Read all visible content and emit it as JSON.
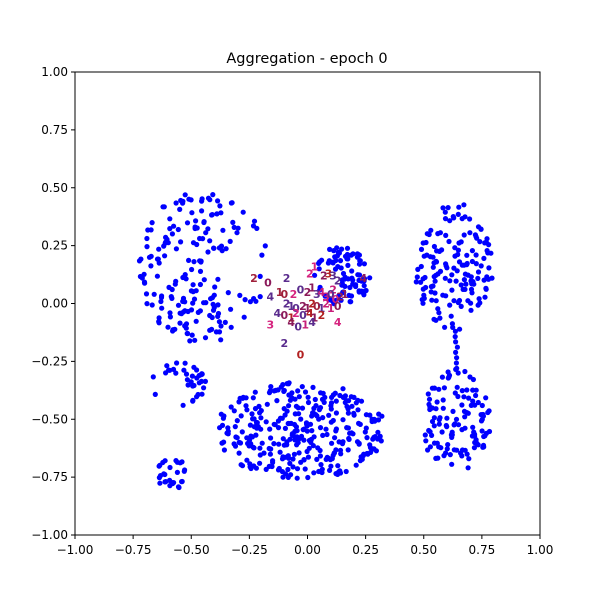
{
  "chart_data": {
    "type": "scatter",
    "title": "Aggregation - epoch 0",
    "xlabel": "",
    "ylabel": "",
    "xlim": [
      -1.0,
      1.0
    ],
    "ylim": [
      -1.0,
      1.0
    ],
    "grid": false,
    "legend": "none",
    "x_ticks": [
      "−1.00",
      "−0.75",
      "−0.50",
      "−0.25",
      "0.00",
      "0.25",
      "0.50",
      "0.75",
      "1.00"
    ],
    "y_ticks": [
      "1.00",
      "0.75",
      "0.50",
      "0.25",
      "0.00",
      "−0.25",
      "−0.50",
      "−0.75",
      "−1.00"
    ],
    "colors": {
      "points": "#0000ff",
      "digit_palette": [
        "#c81e7a",
        "#8b1a5a",
        "#a0203a",
        "#b22222",
        "#5b2d8e",
        "#d6247f"
      ]
    },
    "point_clusters": [
      {
        "shape": "crescent",
        "cx": -0.45,
        "cy": 0.16,
        "rx": 0.28,
        "ry": 0.33,
        "gap_angle": 0,
        "gap_width": 0.55,
        "n": 190
      },
      {
        "shape": "crescent",
        "cx": 0.15,
        "cy": 0.12,
        "rx": 0.12,
        "ry": 0.13,
        "gap_angle": 3.6,
        "gap_width": 0.9,
        "n": 90
      },
      {
        "shape": "ellipse",
        "cx": 0.63,
        "cy": 0.16,
        "rx": 0.17,
        "ry": 0.28,
        "n": 150
      },
      {
        "shape": "bridge",
        "x0": 0.64,
        "y0": -0.12,
        "x1": 0.64,
        "y1": -0.28,
        "n": 8
      },
      {
        "shape": "ellipse",
        "cx": 0.64,
        "cy": -0.51,
        "rx": 0.15,
        "ry": 0.23,
        "n": 120
      },
      {
        "shape": "ellipse",
        "cx": -0.03,
        "cy": -0.55,
        "rx": 0.37,
        "ry": 0.21,
        "n": 330
      },
      {
        "shape": "crescent",
        "cx": -0.55,
        "cy": -0.35,
        "rx": 0.12,
        "ry": 0.1,
        "gap_angle": 3.8,
        "gap_width": 1.4,
        "n": 35
      },
      {
        "shape": "ellipse",
        "cx": -0.585,
        "cy": -0.73,
        "rx": 0.07,
        "ry": 0.075,
        "n": 28
      }
    ],
    "digit_labels": [
      {
        "t": "2",
        "x": -0.23,
        "y": 0.11
      },
      {
        "t": "0",
        "x": -0.17,
        "y": 0.09
      },
      {
        "t": "2",
        "x": -0.09,
        "y": 0.11
      },
      {
        "t": "2",
        "x": 0.01,
        "y": 0.13
      },
      {
        "t": "1",
        "x": 0.03,
        "y": 0.16
      },
      {
        "t": "2",
        "x": 0.07,
        "y": 0.12
      },
      {
        "t": "3",
        "x": 0.09,
        "y": 0.13
      },
      {
        "t": "3",
        "x": 0.11,
        "y": 0.12
      },
      {
        "t": "2",
        "x": 0.13,
        "y": 0.1
      },
      {
        "t": "4",
        "x": 0.24,
        "y": 0.11
      },
      {
        "t": "2",
        "x": 0.11,
        "y": 0.06
      },
      {
        "t": "0",
        "x": 0.12,
        "y": 0.02
      },
      {
        "t": "4",
        "x": -0.16,
        "y": 0.03
      },
      {
        "t": "1",
        "x": -0.12,
        "y": 0.05
      },
      {
        "t": "0",
        "x": -0.1,
        "y": 0.04
      },
      {
        "t": "2",
        "x": -0.06,
        "y": 0.04
      },
      {
        "t": "0",
        "x": -0.03,
        "y": 0.06
      },
      {
        "t": "2",
        "x": 0.0,
        "y": 0.05
      },
      {
        "t": "1",
        "x": 0.02,
        "y": 0.07
      },
      {
        "t": "3",
        "x": 0.04,
        "y": 0.04
      },
      {
        "t": "4",
        "x": 0.06,
        "y": 0.05
      },
      {
        "t": "3",
        "x": 0.08,
        "y": 0.03
      },
      {
        "t": "0",
        "x": 0.1,
        "y": 0.04
      },
      {
        "t": "2",
        "x": 0.14,
        "y": 0.03
      },
      {
        "t": "1",
        "x": 0.16,
        "y": 0.04
      },
      {
        "t": "0",
        "x": 0.13,
        "y": -0.01
      },
      {
        "t": "2",
        "x": -0.09,
        "y": -0.0
      },
      {
        "t": "1",
        "x": -0.07,
        "y": -0.01
      },
      {
        "t": "0",
        "x": -0.05,
        "y": -0.02
      },
      {
        "t": "2",
        "x": -0.02,
        "y": -0.01
      },
      {
        "t": "1",
        "x": 0.0,
        "y": -0.02
      },
      {
        "t": "2",
        "x": 0.02,
        "y": -0.0
      },
      {
        "t": "0",
        "x": 0.04,
        "y": -0.01
      },
      {
        "t": "1",
        "x": 0.06,
        "y": -0.02
      },
      {
        "t": "2",
        "x": 0.08,
        "y": -0.0
      },
      {
        "t": "1",
        "x": 0.1,
        "y": -0.02
      },
      {
        "t": "4",
        "x": -0.13,
        "y": -0.04
      },
      {
        "t": "0",
        "x": -0.1,
        "y": -0.05
      },
      {
        "t": "1",
        "x": -0.07,
        "y": -0.06
      },
      {
        "t": "2",
        "x": -0.05,
        "y": -0.04
      },
      {
        "t": "0",
        "x": -0.02,
        "y": -0.05
      },
      {
        "t": "4",
        "x": 0.01,
        "y": -0.04
      },
      {
        "t": "1",
        "x": 0.03,
        "y": -0.06
      },
      {
        "t": "2",
        "x": 0.06,
        "y": -0.05
      },
      {
        "t": "3",
        "x": -0.16,
        "y": -0.09
      },
      {
        "t": "4",
        "x": -0.07,
        "y": -0.08
      },
      {
        "t": "0",
        "x": -0.04,
        "y": -0.1
      },
      {
        "t": "1",
        "x": -0.01,
        "y": -0.09
      },
      {
        "t": "4",
        "x": 0.02,
        "y": -0.08
      },
      {
        "t": "4",
        "x": 0.13,
        "y": -0.08
      },
      {
        "t": "2",
        "x": -0.1,
        "y": -0.17
      },
      {
        "t": "0",
        "x": -0.03,
        "y": -0.22
      }
    ]
  }
}
